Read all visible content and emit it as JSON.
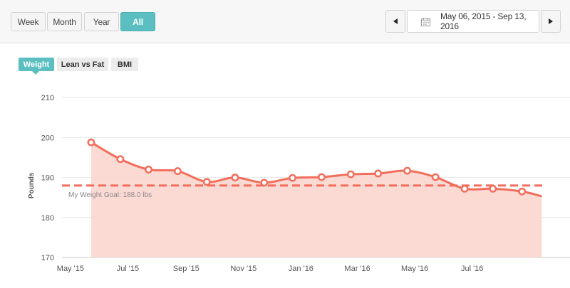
{
  "range_buttons": [
    {
      "label": "Week"
    },
    {
      "label": "Month"
    },
    {
      "label": "Year"
    },
    {
      "label": "All",
      "active": true
    }
  ],
  "date_range": "May 06, 2015 - Sep 13, 2016",
  "metric_tabs": [
    {
      "label": "Weight",
      "active": true
    },
    {
      "label": "Lean vs Fat"
    },
    {
      "label": "BMI"
    }
  ],
  "colors": {
    "accent": "#5bbfc1",
    "line": "#f26e5c",
    "fill": "#fcd4cd",
    "goal": "#f26e5c"
  },
  "icons": {
    "prev": "caret-left-icon",
    "next": "caret-right-icon",
    "calendar": "calendar-icon"
  },
  "chart_data": {
    "type": "area",
    "ylabel": "Pounds",
    "xlabel": "",
    "ylim": [
      170,
      212
    ],
    "y_ticks": [
      170,
      180,
      190,
      200,
      210
    ],
    "x_ticks": [
      "May '15",
      "Jul '15",
      "Sep '15",
      "Nov '15",
      "Jan '16",
      "Mar '16",
      "May '16",
      "Jul '16"
    ],
    "x_tick_dates": [
      "2015-05-01",
      "2015-07-01",
      "2015-09-01",
      "2015-11-01",
      "2016-01-01",
      "2016-03-01",
      "2016-05-01",
      "2016-07-01"
    ],
    "x_range": [
      "2015-04-22",
      "2016-09-18"
    ],
    "series": [
      {
        "points": [
          {
            "x": "2015-05-23",
            "y": 198.8
          },
          {
            "x": "2015-06-23",
            "y": 194.6
          },
          {
            "x": "2015-07-23",
            "y": 192.0
          },
          {
            "x": "2015-08-23",
            "y": 191.6
          },
          {
            "x": "2015-09-23",
            "y": 188.9
          },
          {
            "x": "2015-10-23",
            "y": 190.0
          },
          {
            "x": "2015-11-23",
            "y": 188.7
          },
          {
            "x": "2015-12-23",
            "y": 189.9
          },
          {
            "x": "2016-01-23",
            "y": 190.1
          },
          {
            "x": "2016-02-23",
            "y": 190.8
          },
          {
            "x": "2016-03-23",
            "y": 191.0
          },
          {
            "x": "2016-04-23",
            "y": 191.7
          },
          {
            "x": "2016-05-23",
            "y": 190.1
          },
          {
            "x": "2016-06-23",
            "y": 187.2
          },
          {
            "x": "2016-07-23",
            "y": 187.2
          },
          {
            "x": "2016-08-23",
            "y": 186.5
          }
        ],
        "end": {
          "x": "2016-09-13",
          "y": 185.3
        }
      }
    ],
    "goal": {
      "value": 188.0,
      "label": "My Weight Goal: 188.0 lbs"
    },
    "grid": true,
    "legend": "none"
  }
}
